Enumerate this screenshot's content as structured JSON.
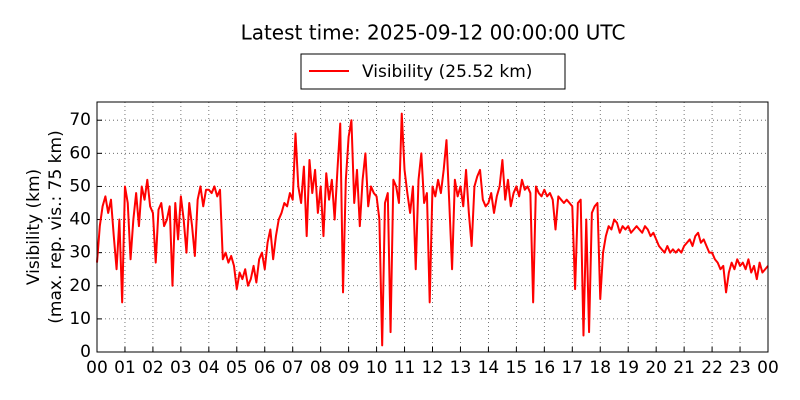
{
  "chart_data": {
    "type": "line",
    "title": "Latest time: 2025-09-12 00:00:00 UTC",
    "y_label": [
      "Visibility (km)",
      "(max. rep. vis.: 75 km)"
    ],
    "legend": "top",
    "grid": true,
    "xlim": [
      0,
      24
    ],
    "ylim": [
      0,
      75.5
    ],
    "yticks": [
      0,
      10,
      20,
      30,
      40,
      50,
      60,
      70
    ],
    "xticks": [
      {
        "value": 0,
        "label": "00"
      },
      {
        "value": 1,
        "label": "01"
      },
      {
        "value": 2,
        "label": "02"
      },
      {
        "value": 3,
        "label": "03"
      },
      {
        "value": 4,
        "label": "04"
      },
      {
        "value": 5,
        "label": "05"
      },
      {
        "value": 6,
        "label": "06"
      },
      {
        "value": 7,
        "label": "07"
      },
      {
        "value": 8,
        "label": "08"
      },
      {
        "value": 9,
        "label": "09"
      },
      {
        "value": 10,
        "label": "10"
      },
      {
        "value": 11,
        "label": "11"
      },
      {
        "value": 12,
        "label": "12"
      },
      {
        "value": 13,
        "label": "13"
      },
      {
        "value": 14,
        "label": "14"
      },
      {
        "value": 15,
        "label": "15"
      },
      {
        "value": 16,
        "label": "16"
      },
      {
        "value": 17,
        "label": "17"
      },
      {
        "value": 18,
        "label": "18"
      },
      {
        "value": 19,
        "label": "19"
      },
      {
        "value": 20,
        "label": "20"
      },
      {
        "value": 21,
        "label": "21"
      },
      {
        "value": 22,
        "label": "22"
      },
      {
        "value": 23,
        "label": "23"
      },
      {
        "value": 24,
        "label": "00"
      }
    ],
    "x": [
      0,
      0.1,
      0.2,
      0.3,
      0.4,
      0.5,
      0.6,
      0.7,
      0.8,
      0.9,
      1,
      1.1,
      1.2,
      1.3,
      1.4,
      1.5,
      1.6,
      1.7,
      1.8,
      1.9,
      2,
      2.1,
      2.2,
      2.3,
      2.4,
      2.5,
      2.6,
      2.7,
      2.8,
      2.9,
      3,
      3.1,
      3.2,
      3.3,
      3.4,
      3.5,
      3.6,
      3.7,
      3.8,
      3.9,
      4,
      4.1,
      4.2,
      4.3,
      4.4,
      4.5,
      4.6,
      4.7,
      4.8,
      4.9,
      5,
      5.1,
      5.2,
      5.3,
      5.4,
      5.5,
      5.6,
      5.7,
      5.8,
      5.9,
      6,
      6.1,
      6.2,
      6.3,
      6.4,
      6.5,
      6.6,
      6.7,
      6.8,
      6.9,
      7,
      7.1,
      7.2,
      7.3,
      7.4,
      7.5,
      7.6,
      7.7,
      7.8,
      7.9,
      8,
      8.1,
      8.2,
      8.3,
      8.4,
      8.5,
      8.6,
      8.7,
      8.8,
      8.9,
      9,
      9.1,
      9.2,
      9.3,
      9.4,
      9.5,
      9.6,
      9.7,
      9.8,
      9.9,
      10,
      10.1,
      10.2,
      10.3,
      10.4,
      10.5,
      10.6,
      10.7,
      10.8,
      10.9,
      11,
      11.1,
      11.2,
      11.3,
      11.4,
      11.5,
      11.6,
      11.7,
      11.8,
      11.9,
      12,
      12.1,
      12.2,
      12.3,
      12.4,
      12.5,
      12.6,
      12.7,
      12.8,
      12.9,
      13,
      13.1,
      13.2,
      13.3,
      13.4,
      13.5,
      13.6,
      13.7,
      13.8,
      13.9,
      14,
      14.1,
      14.2,
      14.3,
      14.4,
      14.5,
      14.6,
      14.7,
      14.8,
      14.9,
      15,
      15.1,
      15.2,
      15.3,
      15.4,
      15.5,
      15.6,
      15.7,
      15.8,
      15.9,
      16,
      16.1,
      16.2,
      16.3,
      16.4,
      16.5,
      16.6,
      16.7,
      16.8,
      16.9,
      17,
      17.1,
      17.2,
      17.3,
      17.4,
      17.5,
      17.6,
      17.7,
      17.8,
      17.9,
      18,
      18.1,
      18.2,
      18.3,
      18.4,
      18.5,
      18.6,
      18.7,
      18.8,
      18.9,
      19,
      19.1,
      19.2,
      19.3,
      19.4,
      19.5,
      19.6,
      19.7,
      19.8,
      19.9,
      20,
      20.1,
      20.2,
      20.3,
      20.4,
      20.5,
      20.6,
      20.7,
      20.8,
      20.9,
      21,
      21.1,
      21.2,
      21.3,
      21.4,
      21.5,
      21.6,
      21.7,
      21.8,
      21.9,
      22,
      22.1,
      22.2,
      22.3,
      22.4,
      22.5,
      22.6,
      22.7,
      22.8,
      22.9,
      23,
      23.1,
      23.2,
      23.3,
      23.4,
      23.5,
      23.6,
      23.7,
      23.8,
      23.9,
      24
    ],
    "series": [
      {
        "name": "Visibility (25.52 km)",
        "color": "#ff0000",
        "values": [
          27,
          38,
          44,
          47,
          42,
          46,
          35,
          25,
          40,
          15,
          50,
          45,
          28,
          40,
          48,
          38,
          50,
          46,
          52,
          44,
          42,
          27,
          43,
          45,
          38,
          40,
          44,
          20,
          45,
          34,
          47,
          40,
          30,
          45,
          38,
          29,
          46,
          50,
          44,
          49,
          49,
          48,
          50,
          47,
          49,
          28,
          30,
          27,
          29,
          26,
          19,
          24,
          22,
          25,
          20,
          22,
          26,
          21,
          28,
          30,
          25,
          33,
          37,
          28,
          35,
          40,
          42,
          45,
          44,
          48,
          46,
          66,
          50,
          45,
          56,
          35,
          58,
          48,
          55,
          42,
          50,
          35,
          54,
          46,
          52,
          40,
          55,
          69,
          18,
          52,
          65,
          70,
          45,
          55,
          38,
          52,
          60,
          44,
          50,
          48,
          47,
          40,
          2,
          45,
          48,
          6,
          52,
          50,
          45,
          72,
          55,
          48,
          42,
          50,
          25,
          52,
          60,
          45,
          48,
          15,
          50,
          47,
          52,
          48,
          55,
          64,
          45,
          25,
          52,
          47,
          50,
          44,
          55,
          42,
          32,
          50,
          53,
          55,
          46,
          44,
          45,
          48,
          42,
          47,
          50,
          58,
          46,
          52,
          44,
          48,
          50,
          47,
          52,
          49,
          50,
          48,
          15,
          50,
          48,
          47,
          49,
          47,
          48,
          46,
          37,
          47,
          46,
          45,
          46,
          45,
          44,
          19,
          45,
          46,
          5,
          40,
          6,
          42,
          44,
          45,
          16,
          30,
          35,
          38,
          37,
          40,
          39,
          36,
          38,
          37,
          38,
          36,
          37,
          38,
          37,
          36,
          38,
          37,
          35,
          36,
          34,
          32,
          31,
          30,
          32,
          30,
          31,
          30,
          31,
          30,
          32,
          33,
          34,
          32,
          35,
          36,
          33,
          34,
          32,
          30,
          30,
          28,
          27,
          25,
          26,
          18,
          24,
          27,
          25,
          28,
          26,
          27,
          25,
          28,
          24,
          26,
          22,
          27,
          24,
          25,
          26
        ]
      }
    ]
  }
}
